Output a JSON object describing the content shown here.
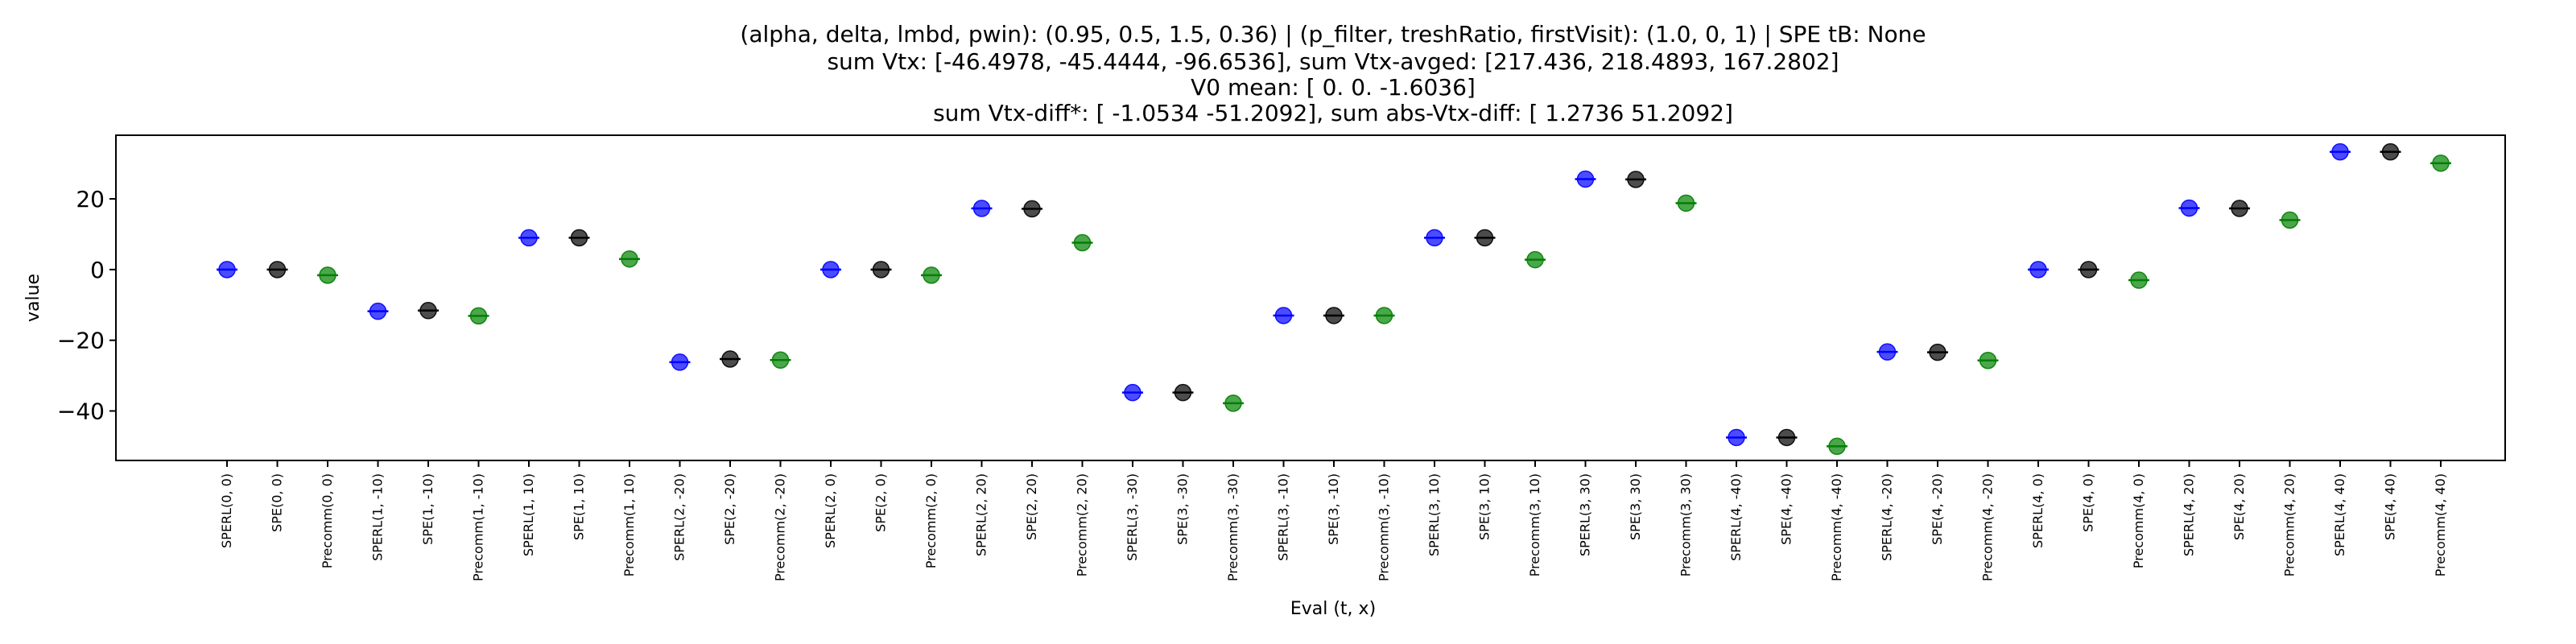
{
  "chart_data": {
    "type": "scatter",
    "title_lines": [
      "(alpha, delta, lmbd, pwin): (0.95, 0.5, 1.5, 0.36) | (p_filter, treshRatio, firstVisit): (1.0, 0, 1) | SPE tB: None",
      "sum Vtx: [-46.4978, -45.4444, -96.6536], sum Vtx-avged: [217.436, 218.4893, 167.2802]",
      "V0 mean: [ 0.      0.     -1.6036]",
      "sum Vtx-diff*: [ -1.0534 -51.2092], sum abs-Vtx-diff: [ 1.2736 51.2092]"
    ],
    "xlabel": "Eval (t, x)",
    "ylabel": "value",
    "ylim": [
      -54,
      38
    ],
    "yticks": [
      -40,
      -20,
      0,
      20
    ],
    "grid": false,
    "categories": [
      "SPERL(0, 0)",
      "SPE(0, 0)",
      "Precomm(0, 0)",
      "SPERL(1, -10)",
      "SPE(1, -10)",
      "Precomm(1, -10)",
      "SPERL(1, 10)",
      "SPE(1, 10)",
      "Precomm(1, 10)",
      "SPERL(2, -20)",
      "SPE(2, -20)",
      "Precomm(2, -20)",
      "SPERL(2, 0)",
      "SPE(2, 0)",
      "Precomm(2, 0)",
      "SPERL(2, 20)",
      "SPE(2, 20)",
      "Precomm(2, 20)",
      "SPERL(3, -30)",
      "SPE(3, -30)",
      "Precomm(3, -30)",
      "SPERL(3, -10)",
      "SPE(3, -10)",
      "Precomm(3, -10)",
      "SPERL(3, 10)",
      "SPE(3, 10)",
      "Precomm(3, 10)",
      "SPERL(3, 30)",
      "SPE(3, 30)",
      "Precomm(3, 30)",
      "SPERL(4, -40)",
      "SPE(4, -40)",
      "Precomm(4, -40)",
      "SPERL(4, -20)",
      "SPE(4, -20)",
      "Precomm(4, -20)",
      "SPERL(4, 0)",
      "SPE(4, 0)",
      "Precomm(4, 0)",
      "SPERL(4, 20)",
      "SPE(4, 20)",
      "Precomm(4, 20)",
      "SPERL(4, 40)",
      "SPE(4, 40)",
      "Precomm(4, 40)"
    ],
    "values": [
      0,
      0,
      -1.6,
      -11.8,
      -11.6,
      -13.1,
      9.0,
      9.0,
      3.0,
      -26.2,
      -25.3,
      -25.6,
      0,
      0,
      -1.6,
      17.3,
      17.2,
      7.6,
      -34.8,
      -34.8,
      -37.8,
      -13.0,
      -13.0,
      -13.0,
      9.0,
      9.0,
      2.8,
      25.6,
      25.5,
      18.8,
      -47.5,
      -47.5,
      -50.0,
      -23.3,
      -23.4,
      -25.7,
      0,
      0,
      -3.0,
      17.4,
      17.3,
      14.0,
      33.3,
      33.3,
      30.1
    ],
    "colors": {
      "SPERL": "#0000ff",
      "SPE": "#000000",
      "Precomm": "#008000"
    },
    "marker_opacity": 0.7
  }
}
